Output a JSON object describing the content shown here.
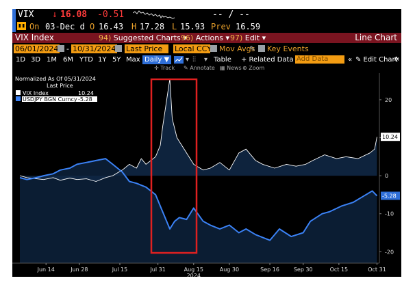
{
  "quote": {
    "ticker": "VIX",
    "direction_arrow": "↓",
    "last": "16.08",
    "change": "-0.51",
    "range_placeholder": "-- / --",
    "on_label": "On",
    "on_value": "03-Dec d",
    "open_label": "O",
    "open_value": "16.43",
    "high_label": "H",
    "high_value": "17.28",
    "low_label": "L",
    "low_value": "15.93",
    "prev_label": "Prev",
    "prev_value": "16.59"
  },
  "title_bar": {
    "title": "VIX Index",
    "suggested_num": "94)",
    "suggested_label": "Suggested Charts ▾",
    "actions_num": "96)",
    "actions_label": "Actions ▾",
    "edit_num": "97)",
    "edit_label": "Edit ▾",
    "view_label": "Line Chart"
  },
  "controls": {
    "start_date": "06/01/2024",
    "end_date": "10/31/2024",
    "price_field": "Last Price",
    "currency": "Local CCY",
    "mov_avgs": "Mov Avgs",
    "key_events": "Key Events"
  },
  "toolbar": {
    "ranges": [
      "1D",
      "3D",
      "1M",
      "6M",
      "YTD",
      "1Y",
      "5Y",
      "Max"
    ],
    "frequency": "Daily ▼",
    "table": "Table",
    "related": "+ Related Data ▾",
    "add_data_placeholder": "Add Data",
    "collapse": "«",
    "edit_chart": "✎ Edit Chart",
    "settings": "✲"
  },
  "chart_tools": {
    "track": "✛ Track",
    "annotate": "✎ Annotate",
    "news": "▦ News",
    "zoom": "⊕ Zoom"
  },
  "colors": {
    "terminal_bg": "#000000",
    "title_bar": "#7a1420",
    "orange": "#f39c12",
    "accent_blue": "#2f6fd8",
    "vix_line": "#ffffff",
    "usdjpy_line": "#3b82f6",
    "area_fill": "#0f2744",
    "highlight_box": "#e02020"
  },
  "chart_data": {
    "type": "line",
    "legend_title": "Normalized As Of 05/31/2024",
    "legend_subtitle": "Last Price",
    "legend_position": "top-left",
    "x_ticks": [
      "Jun 14",
      "Jun 28",
      "Jul 15",
      "Jul 31",
      "Aug 15",
      "Aug 30",
      "Sep 16",
      "Sep 30",
      "Oct 15",
      "Oct 31"
    ],
    "x_year": "2024",
    "y_ticks": [
      20,
      10,
      0,
      -10,
      -20
    ],
    "ylim": [
      -23,
      27
    ],
    "grid": false,
    "series": [
      {
        "name": "VIX Index",
        "last_value": "10.24",
        "x": [
          "2024-06-03",
          "2024-06-06",
          "2024-06-10",
          "2024-06-13",
          "2024-06-17",
          "2024-06-20",
          "2024-06-24",
          "2024-06-27",
          "2024-07-01",
          "2024-07-05",
          "2024-07-09",
          "2024-07-12",
          "2024-07-16",
          "2024-07-19",
          "2024-07-22",
          "2024-07-24",
          "2024-07-26",
          "2024-07-30",
          "2024-08-01",
          "2024-08-02",
          "2024-08-05",
          "2024-08-06",
          "2024-08-08",
          "2024-08-12",
          "2024-08-15",
          "2024-08-19",
          "2024-08-22",
          "2024-08-26",
          "2024-08-30",
          "2024-09-03",
          "2024-09-06",
          "2024-09-10",
          "2024-09-13",
          "2024-09-18",
          "2024-09-23",
          "2024-09-27",
          "2024-10-01",
          "2024-10-04",
          "2024-10-09",
          "2024-10-14",
          "2024-10-18",
          "2024-10-23",
          "2024-10-28",
          "2024-10-30",
          "2024-10-31"
        ],
        "y": [
          0,
          -0.5,
          -0.8,
          -1,
          -0.5,
          -1.2,
          -0.6,
          -1,
          -0.8,
          -1.5,
          -0.5,
          0,
          1.5,
          3,
          2,
          4.5,
          3,
          5,
          8,
          13,
          25.5,
          15,
          10,
          6,
          3,
          1.5,
          2,
          3.5,
          1.5,
          6,
          7,
          4,
          3,
          2,
          3,
          2.5,
          3,
          4,
          5.5,
          4.5,
          5,
          4.5,
          6,
          7,
          10.24
        ]
      },
      {
        "name": "USDJPY BGN Curncy",
        "last_value": "-5.28",
        "x": [
          "2024-06-03",
          "2024-06-06",
          "2024-06-10",
          "2024-06-13",
          "2024-06-17",
          "2024-06-20",
          "2024-06-24",
          "2024-06-27",
          "2024-07-01",
          "2024-07-05",
          "2024-07-09",
          "2024-07-12",
          "2024-07-16",
          "2024-07-19",
          "2024-07-22",
          "2024-07-26",
          "2024-07-30",
          "2024-08-01",
          "2024-08-05",
          "2024-08-07",
          "2024-08-09",
          "2024-08-12",
          "2024-08-15",
          "2024-08-19",
          "2024-08-22",
          "2024-08-26",
          "2024-08-30",
          "2024-09-03",
          "2024-09-06",
          "2024-09-10",
          "2024-09-16",
          "2024-09-20",
          "2024-09-25",
          "2024-09-30",
          "2024-10-03",
          "2024-10-08",
          "2024-10-11",
          "2024-10-16",
          "2024-10-21",
          "2024-10-25",
          "2024-10-29",
          "2024-10-31"
        ],
        "y": [
          -0.5,
          -1,
          -0.5,
          0,
          0.5,
          1.5,
          2,
          3,
          3.5,
          4,
          4.5,
          3,
          1,
          -1.5,
          -2,
          -3,
          -5,
          -8,
          -14,
          -12,
          -11,
          -11.5,
          -8.5,
          -12,
          -13,
          -14,
          -13,
          -15,
          -14,
          -15.5,
          -17,
          -14,
          -16,
          -15,
          -12,
          -10,
          -9.5,
          -8,
          -7,
          -5.5,
          -4,
          -5.28
        ]
      }
    ],
    "annotation": "highlight box around late Jul – early Aug"
  }
}
